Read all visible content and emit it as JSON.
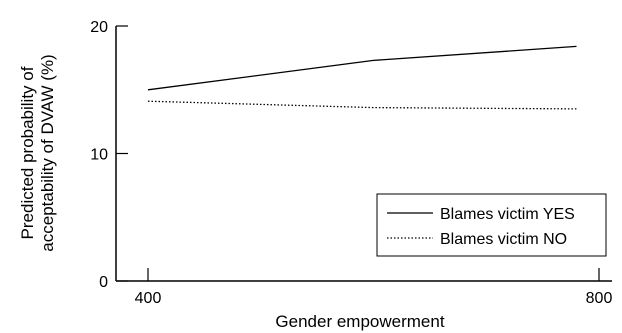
{
  "chart_data": {
    "type": "line",
    "title": "",
    "xlabel": "Gender empowerment",
    "ylabel_lines": [
      "Predicted probability of",
      "acceptability of DVAW (%)"
    ],
    "xlim": [
      400,
      800
    ],
    "ylim": [
      0,
      20
    ],
    "x_ticks": [
      400,
      800
    ],
    "y_ticks": [
      0,
      10,
      20
    ],
    "grid": false,
    "legend_position": "bottom-right",
    "series": [
      {
        "name": "Blames victim YES",
        "line_style": "solid",
        "color": "#000000",
        "x": [
          400,
          600,
          780
        ],
        "y": [
          15.0,
          17.3,
          18.4
        ]
      },
      {
        "name": "Blames victim NO",
        "line_style": "dotted",
        "color": "#000000",
        "x": [
          400,
          600,
          780
        ],
        "y": [
          14.1,
          13.6,
          13.5
        ]
      }
    ]
  }
}
